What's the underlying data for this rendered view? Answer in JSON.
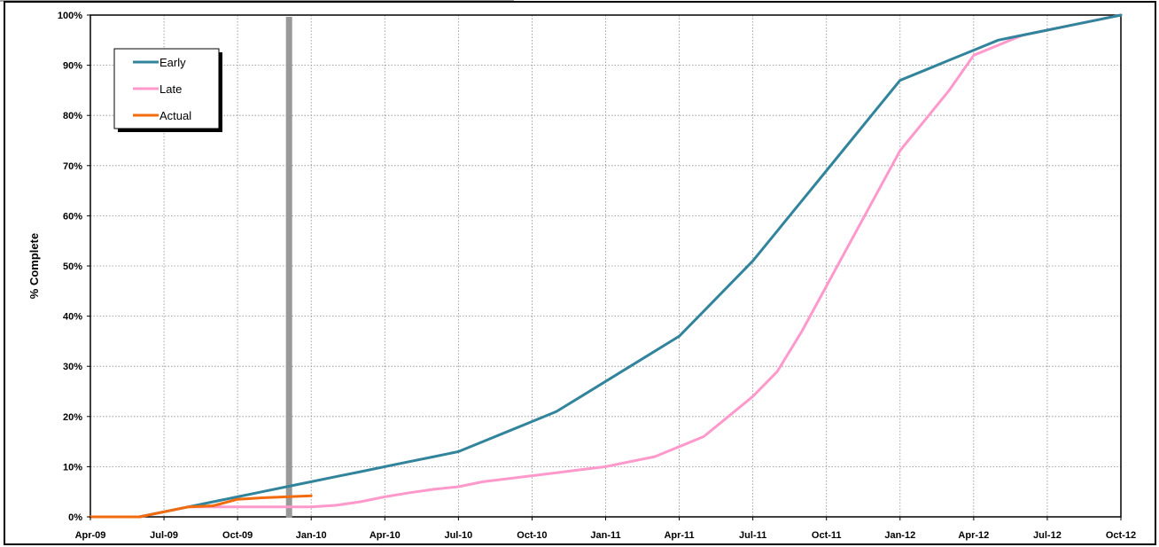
{
  "chart_data": {
    "type": "line",
    "ylabel": "% Complete",
    "xlabel": "",
    "title": "",
    "x_ticks": [
      "Apr-09",
      "Jul-09",
      "Oct-09",
      "Jan-10",
      "Apr-10",
      "Jul-10",
      "Oct-10",
      "Jan-11",
      "Apr-11",
      "Jul-11",
      "Oct-11",
      "Jan-12",
      "Apr-12",
      "Jul-12",
      "Oct-12"
    ],
    "xlim": [
      "Apr-09",
      "Oct-12"
    ],
    "y_ticks": [
      "0%",
      "10%",
      "20%",
      "30%",
      "40%",
      "50%",
      "60%",
      "70%",
      "80%",
      "90%",
      "100%"
    ],
    "ylim": [
      0,
      100
    ],
    "grid": true,
    "legend_position": "top-left",
    "status_date": "Jan-10",
    "status_line_color": "#999999",
    "series": [
      {
        "name": "Early",
        "color": "#31849b",
        "points": [
          [
            "2009-04-01",
            0
          ],
          [
            "2009-06-01",
            0
          ],
          [
            "2009-07-01",
            1
          ],
          [
            "2009-08-01",
            2
          ],
          [
            "2009-09-01",
            3
          ],
          [
            "2009-10-01",
            4
          ],
          [
            "2009-11-01",
            5
          ],
          [
            "2009-12-01",
            6
          ],
          [
            "2010-01-01",
            7
          ],
          [
            "2010-02-01",
            8
          ],
          [
            "2010-03-01",
            9
          ],
          [
            "2010-04-01",
            10
          ],
          [
            "2010-05-01",
            11
          ],
          [
            "2010-06-01",
            12
          ],
          [
            "2010-07-01",
            13
          ],
          [
            "2010-08-01",
            15
          ],
          [
            "2010-09-01",
            17
          ],
          [
            "2010-10-01",
            19
          ],
          [
            "2010-11-01",
            21
          ],
          [
            "2010-12-01",
            24
          ],
          [
            "2011-01-01",
            27
          ],
          [
            "2011-02-01",
            30
          ],
          [
            "2011-03-01",
            33
          ],
          [
            "2011-04-01",
            36
          ],
          [
            "2011-05-01",
            41
          ],
          [
            "2011-06-01",
            46
          ],
          [
            "2011-07-01",
            51
          ],
          [
            "2011-08-01",
            57
          ],
          [
            "2011-09-01",
            63
          ],
          [
            "2011-10-01",
            69
          ],
          [
            "2011-11-01",
            75
          ],
          [
            "2011-12-01",
            81
          ],
          [
            "2012-01-01",
            87
          ],
          [
            "2012-02-01",
            89
          ],
          [
            "2012-03-01",
            91
          ],
          [
            "2012-04-01",
            93
          ],
          [
            "2012-05-01",
            95
          ],
          [
            "2012-06-01",
            96
          ],
          [
            "2012-07-01",
            97
          ],
          [
            "2012-08-01",
            98
          ],
          [
            "2012-09-01",
            99
          ],
          [
            "2012-10-01",
            100
          ]
        ]
      },
      {
        "name": "Late",
        "color": "#ff99cc",
        "points": [
          [
            "2009-04-01",
            0
          ],
          [
            "2009-06-01",
            0
          ],
          [
            "2009-07-01",
            1
          ],
          [
            "2009-08-01",
            2
          ],
          [
            "2009-09-01",
            2
          ],
          [
            "2009-10-01",
            2
          ],
          [
            "2009-11-01",
            2
          ],
          [
            "2009-12-01",
            2
          ],
          [
            "2010-01-01",
            2
          ],
          [
            "2010-02-01",
            2.3
          ],
          [
            "2010-03-01",
            3
          ],
          [
            "2010-04-01",
            4
          ],
          [
            "2010-05-01",
            4.8
          ],
          [
            "2010-06-01",
            5.5
          ],
          [
            "2010-07-01",
            6
          ],
          [
            "2010-08-01",
            7
          ],
          [
            "2010-09-01",
            7.6
          ],
          [
            "2010-10-01",
            8.2
          ],
          [
            "2010-11-01",
            8.8
          ],
          [
            "2010-12-01",
            9.4
          ],
          [
            "2011-01-01",
            10
          ],
          [
            "2011-02-01",
            11
          ],
          [
            "2011-03-01",
            12
          ],
          [
            "2011-04-01",
            14
          ],
          [
            "2011-05-01",
            16
          ],
          [
            "2011-06-01",
            20
          ],
          [
            "2011-07-01",
            24
          ],
          [
            "2011-08-01",
            29
          ],
          [
            "2011-09-01",
            37
          ],
          [
            "2011-10-01",
            46
          ],
          [
            "2011-11-01",
            55
          ],
          [
            "2011-12-01",
            64
          ],
          [
            "2012-01-01",
            73
          ],
          [
            "2012-02-01",
            79
          ],
          [
            "2012-03-01",
            85
          ],
          [
            "2012-04-01",
            92
          ],
          [
            "2012-05-01",
            94
          ],
          [
            "2012-06-01",
            96
          ],
          [
            "2012-07-01",
            97
          ],
          [
            "2012-08-01",
            98
          ],
          [
            "2012-09-01",
            99
          ],
          [
            "2012-10-01",
            100
          ]
        ]
      },
      {
        "name": "Actual",
        "color": "#f26b0f",
        "points": [
          [
            "2009-04-01",
            0
          ],
          [
            "2009-06-01",
            0
          ],
          [
            "2009-07-01",
            1
          ],
          [
            "2009-08-01",
            2
          ],
          [
            "2009-09-01",
            2.2
          ],
          [
            "2009-10-01",
            3.5
          ],
          [
            "2009-11-01",
            3.8
          ],
          [
            "2009-12-01",
            4
          ],
          [
            "2010-01-01",
            4.2
          ]
        ]
      }
    ]
  }
}
